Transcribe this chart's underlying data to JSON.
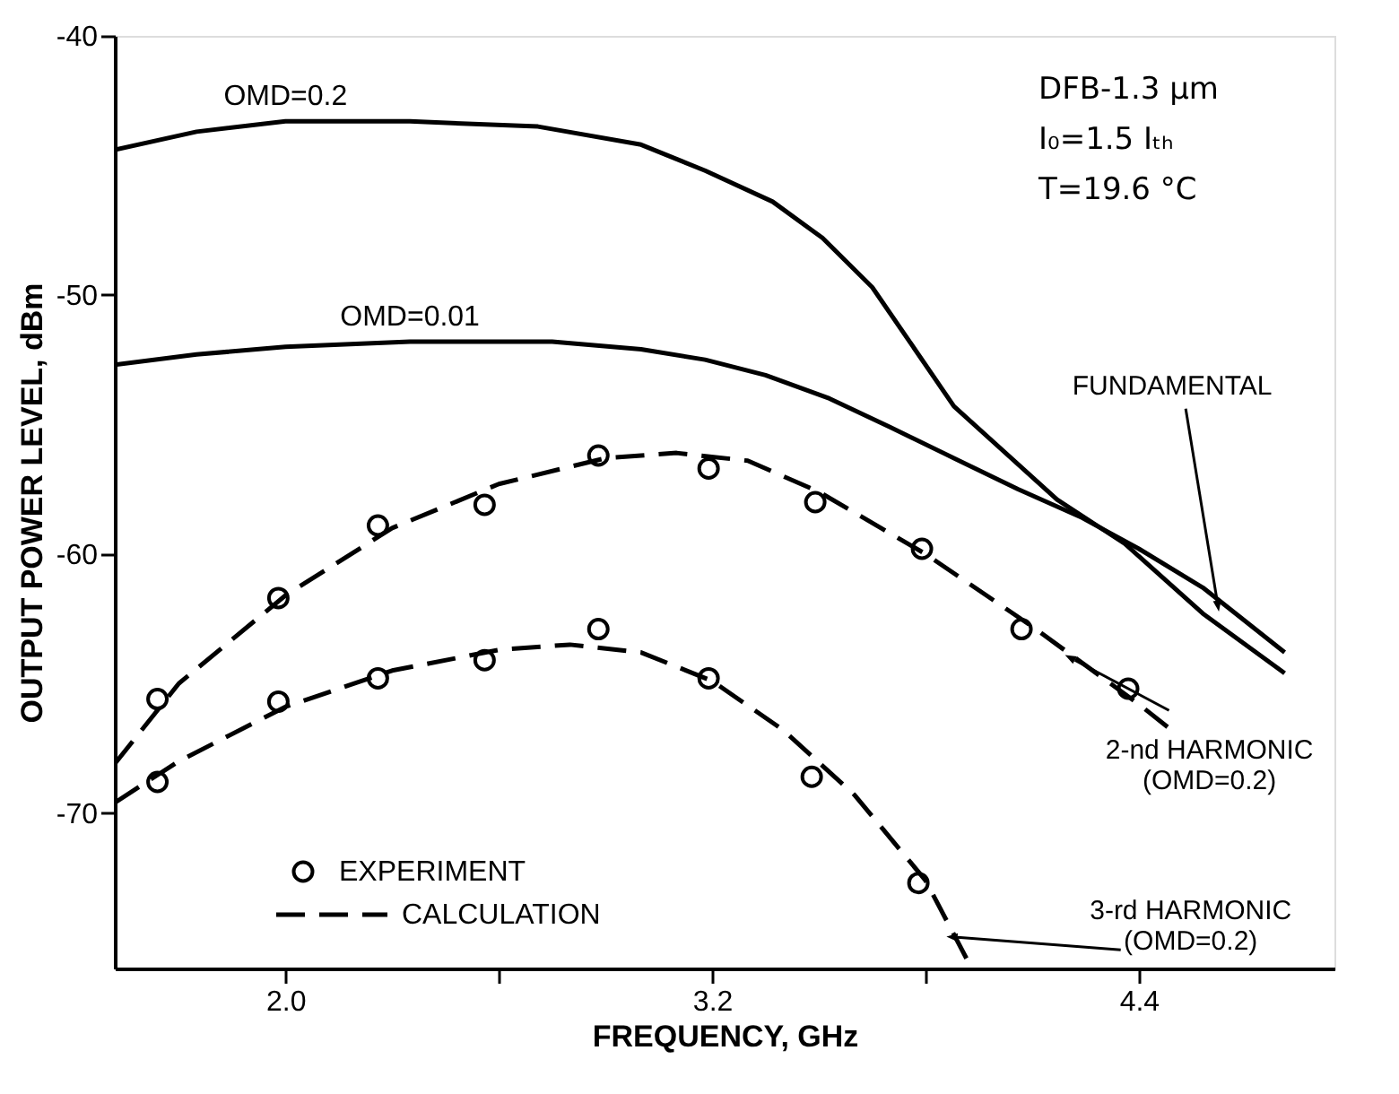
{
  "chart_data": {
    "type": "line",
    "xlabel": "FREQUENCY, GHz",
    "ylabel": "OUTPUT POWER LEVEL, dBm",
    "xlim": [
      1.52,
      4.95
    ],
    "xticks": [
      {
        "value": 2.0,
        "label": "2.0"
      },
      {
        "value": 2.6,
        "label": null
      },
      3.2,
      {
        "value": 3.8,
        "label": null
      },
      4.4
    ],
    "ylim": [
      -76,
      -40
    ],
    "yticks": [
      -40,
      -50,
      -60,
      -70
    ],
    "grid": false,
    "legend": "bottom left",
    "series": [
      {
        "name": "OMD=0.2",
        "line_style": "solid",
        "color": "#000000",
        "x": [
          1.52,
          1.75,
          2.0,
          2.35,
          2.71,
          3.0,
          3.18,
          3.37,
          3.51,
          3.65,
          3.88,
          4.17,
          4.36,
          4.58,
          4.81
        ],
        "values": [
          -44.4,
          -43.7,
          -43.3,
          -43.3,
          -43.5,
          -44.2,
          -45.2,
          -46.4,
          -47.8,
          -49.7,
          -54.3,
          -57.9,
          -59.6,
          -62.3,
          -64.6
        ]
      },
      {
        "name": "OMD=0.01",
        "line_style": "solid",
        "color": "#000000",
        "x": [
          1.52,
          1.75,
          2.0,
          2.35,
          2.75,
          3.0,
          3.18,
          3.35,
          3.53,
          3.7,
          3.88,
          4.06,
          4.24,
          4.4,
          4.58,
          4.81
        ],
        "values": [
          -52.7,
          -52.3,
          -52.0,
          -51.8,
          -51.8,
          -52.1,
          -52.5,
          -53.1,
          -54.0,
          -55.1,
          -56.3,
          -57.5,
          -58.6,
          -59.8,
          -61.3,
          -63.8
        ]
      },
      {
        "name": "CALCULATION",
        "line_style": "dashed",
        "color": "#000000",
        "x": [
          1.52,
          1.7,
          2.0,
          2.3,
          2.6,
          2.9,
          3.1,
          3.3,
          3.5,
          3.8,
          4.1,
          4.4,
          4.51
        ],
        "values": [
          -68.1,
          -65.0,
          -61.6,
          -59.0,
          -57.3,
          -56.3,
          -56.1,
          -56.4,
          -57.6,
          -60.0,
          -62.8,
          -65.8,
          -67.0
        ]
      },
      {
        "line_style": "dashed",
        "color": "#000000",
        "x": [
          1.52,
          1.7,
          2.0,
          2.3,
          2.6,
          2.8,
          3.0,
          3.2,
          3.4,
          3.6,
          3.8,
          3.93
        ],
        "values": [
          -69.6,
          -68.0,
          -65.9,
          -64.5,
          -63.7,
          -63.5,
          -63.8,
          -64.9,
          -66.8,
          -69.3,
          -72.6,
          -76.0
        ]
      },
      {
        "name": "EXPERIMENT",
        "type": "scatter",
        "marker": "circle",
        "color": "#000000",
        "x": [
          1.64,
          1.98,
          2.26,
          2.56,
          2.88,
          3.19,
          3.49,
          3.79,
          4.07,
          4.37,
          1.64,
          1.98,
          2.26,
          2.56,
          2.88,
          3.19,
          3.48,
          3.78
        ],
        "values": [
          -65.6,
          -61.7,
          -58.9,
          -58.1,
          -56.2,
          -56.7,
          -58.0,
          -59.8,
          -62.9,
          -65.2,
          -68.8,
          -65.7,
          -64.8,
          -64.1,
          -62.9,
          -64.8,
          -68.6,
          -72.7
        ]
      }
    ],
    "annotations": [
      "DFB-1.3 μm",
      "I₀=1.5 Iₜₕ",
      "T=19.6 °C",
      {
        "text": "FUNDAMENTAL",
        "x": 4.62,
        "y": -61.8
      },
      {
        "text": "2-nd HARMONIC\n(OMD=0.2)",
        "x": 4.22,
        "y": -64.1
      },
      {
        "text": "3-rd HARMONIC\n(OMD=0.2)",
        "x": 3.89,
        "y": -74.8
      }
    ]
  }
}
